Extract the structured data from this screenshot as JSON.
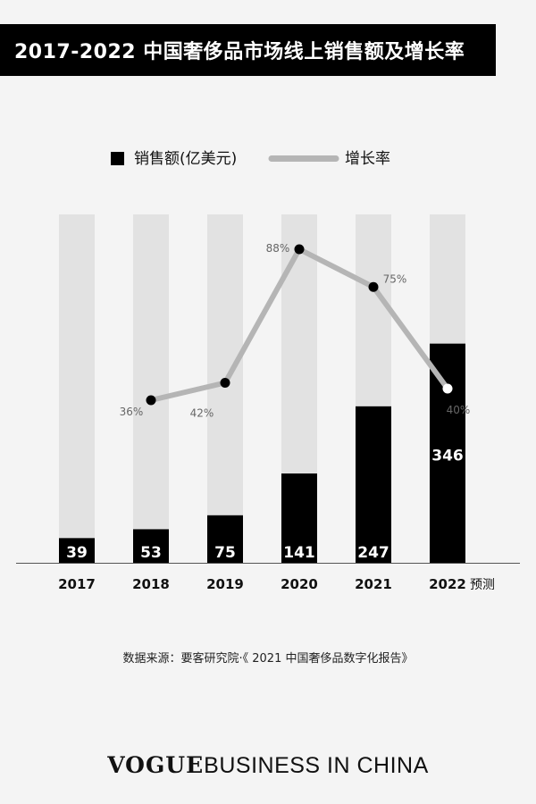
{
  "title": "2017-2022 中国奢侈品市场线上销售额及增长率",
  "source": "数据来源：要客研究院·《 2021 中国奢侈品数字化报告》",
  "brand": {
    "part1": "VOGUE",
    "part2": "BUSINESS IN CHINA"
  },
  "colors": {
    "bar": "#000000",
    "track": "#e2e2e2",
    "line": "#b5b5b5",
    "point": "#000000",
    "point_forecast": "#ffffff",
    "background": "#f4f4f4"
  },
  "chart_data": {
    "type": "bar",
    "categories": [
      "2017",
      "2018",
      "2019",
      "2020",
      "2021",
      "2022"
    ],
    "forecast_suffix": "预测",
    "forecast_index": 5,
    "legend": {
      "bar": "销售额(亿美元)",
      "line": "增长率",
      "placement": "top-center"
    },
    "series": [
      {
        "name": "销售额(亿美元)",
        "type": "bar",
        "values": [
          39,
          53,
          75,
          141,
          247,
          346
        ],
        "labels": [
          "39",
          "53",
          "75",
          "141",
          "247",
          "346"
        ]
      },
      {
        "name": "增长率",
        "type": "line",
        "values": [
          null,
          36,
          42,
          88,
          75,
          40
        ],
        "labels": [
          "",
          "36%",
          "42%",
          "88%",
          "75%",
          "40%"
        ]
      }
    ],
    "ylim_bar": [
      0,
      550
    ],
    "ylim_line": [
      -20,
      100
    ],
    "grid": false
  }
}
